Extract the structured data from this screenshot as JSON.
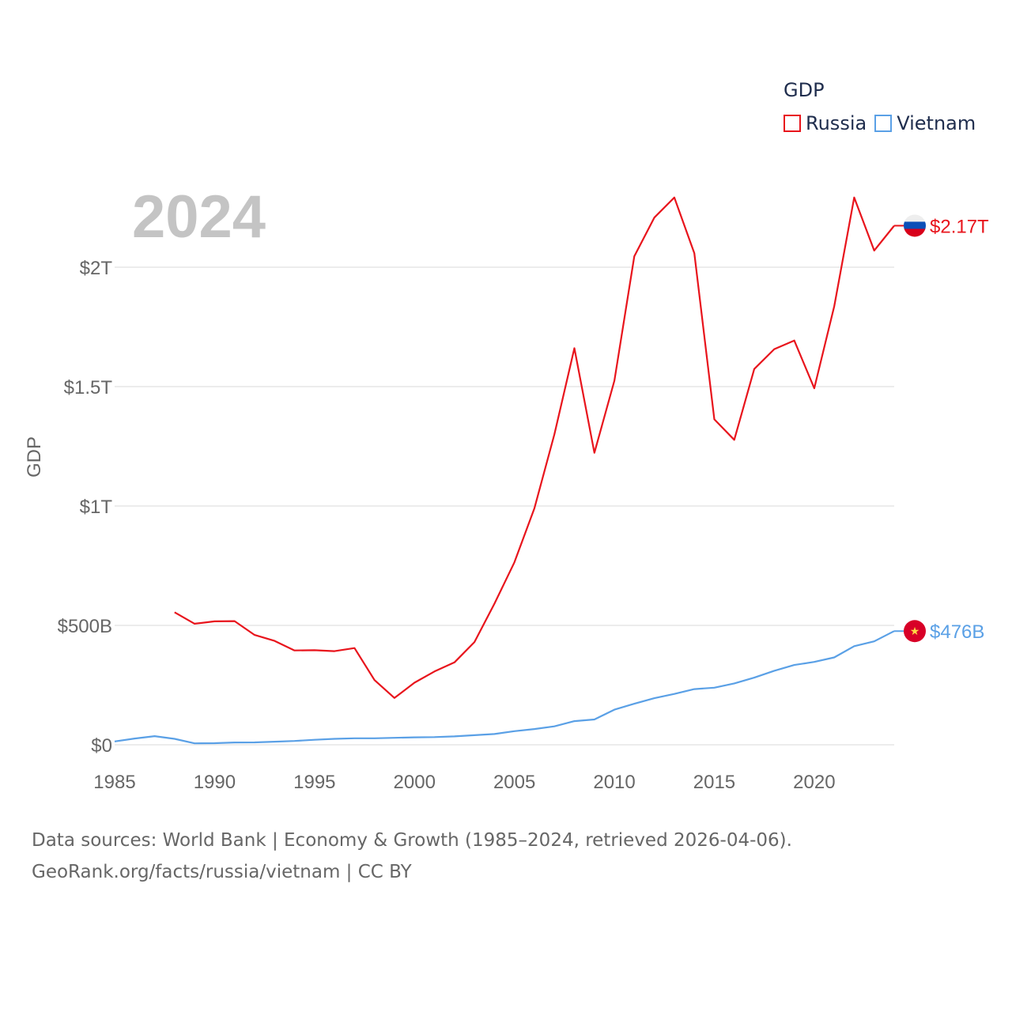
{
  "legend": {
    "title": "GDP",
    "items": [
      {
        "label": "Russia",
        "color": "#e8141c"
      },
      {
        "label": "Vietnam",
        "color": "#5aa0e6"
      }
    ]
  },
  "footer": {
    "line1": "Data sources: World Bank | Economy & Growth (1985–2024, retrieved 2026-04-06).",
    "line2": "GeoRank.org/facts/russia/vietnam | CC BY"
  },
  "chart_data": {
    "type": "line",
    "title": "GDP",
    "year_label": "2024",
    "xlabel": "",
    "ylabel": "GDP",
    "xlim": [
      1985,
      2024
    ],
    "ylim": [
      0,
      2000
    ],
    "x_ticks": [
      1985,
      1990,
      1995,
      2000,
      2005,
      2010,
      2015,
      2020
    ],
    "y_ticks": [
      {
        "value": 0,
        "label": "$0"
      },
      {
        "value": 500,
        "label": "$500B"
      },
      {
        "value": 1000,
        "label": "$1T"
      },
      {
        "value": 1500,
        "label": "$1.5T"
      },
      {
        "value": 2000,
        "label": "$2T"
      }
    ],
    "units": "billions USD",
    "series": [
      {
        "name": "Russia",
        "color": "#e8141c",
        "end_label": "$2.17T",
        "flag": "russia-flag",
        "x": [
          1988,
          1989,
          1990,
          1991,
          1992,
          1993,
          1994,
          1995,
          1996,
          1997,
          1998,
          1999,
          2000,
          2001,
          2002,
          2003,
          2004,
          2005,
          2006,
          2007,
          2008,
          2009,
          2010,
          2011,
          2012,
          2013,
          2014,
          2015,
          2016,
          2017,
          2018,
          2019,
          2020,
          2021,
          2022,
          2023,
          2024
        ],
        "values": [
          555,
          507,
          517,
          518,
          460,
          435,
          395,
          396,
          392,
          405,
          271,
          196,
          260,
          307,
          345,
          430,
          591,
          764,
          990,
          1300,
          1661,
          1223,
          1525,
          2046,
          2208,
          2292,
          2059,
          1363,
          1277,
          1574,
          1657,
          1693,
          1493,
          1837,
          2292,
          2070,
          2174
        ]
      },
      {
        "name": "Vietnam",
        "color": "#5aa0e6",
        "end_label": "$476B",
        "flag": "vietnam-flag",
        "x": [
          1985,
          1986,
          1987,
          1988,
          1989,
          1990,
          1991,
          1992,
          1993,
          1994,
          1995,
          1996,
          1997,
          1998,
          1999,
          2000,
          2001,
          2002,
          2003,
          2004,
          2005,
          2006,
          2007,
          2008,
          2009,
          2010,
          2011,
          2012,
          2013,
          2014,
          2015,
          2016,
          2017,
          2018,
          2019,
          2020,
          2021,
          2022,
          2023,
          2024
        ],
        "values": [
          14,
          26,
          36,
          25,
          6,
          6.5,
          9.6,
          9.9,
          13,
          16,
          21,
          25,
          27,
          27,
          29,
          31,
          32,
          35,
          40,
          45,
          57,
          66,
          77,
          99,
          106,
          147,
          172,
          195,
          213,
          233,
          239,
          257,
          281,
          310,
          334,
          347,
          366,
          413,
          433,
          476
        ]
      }
    ]
  }
}
